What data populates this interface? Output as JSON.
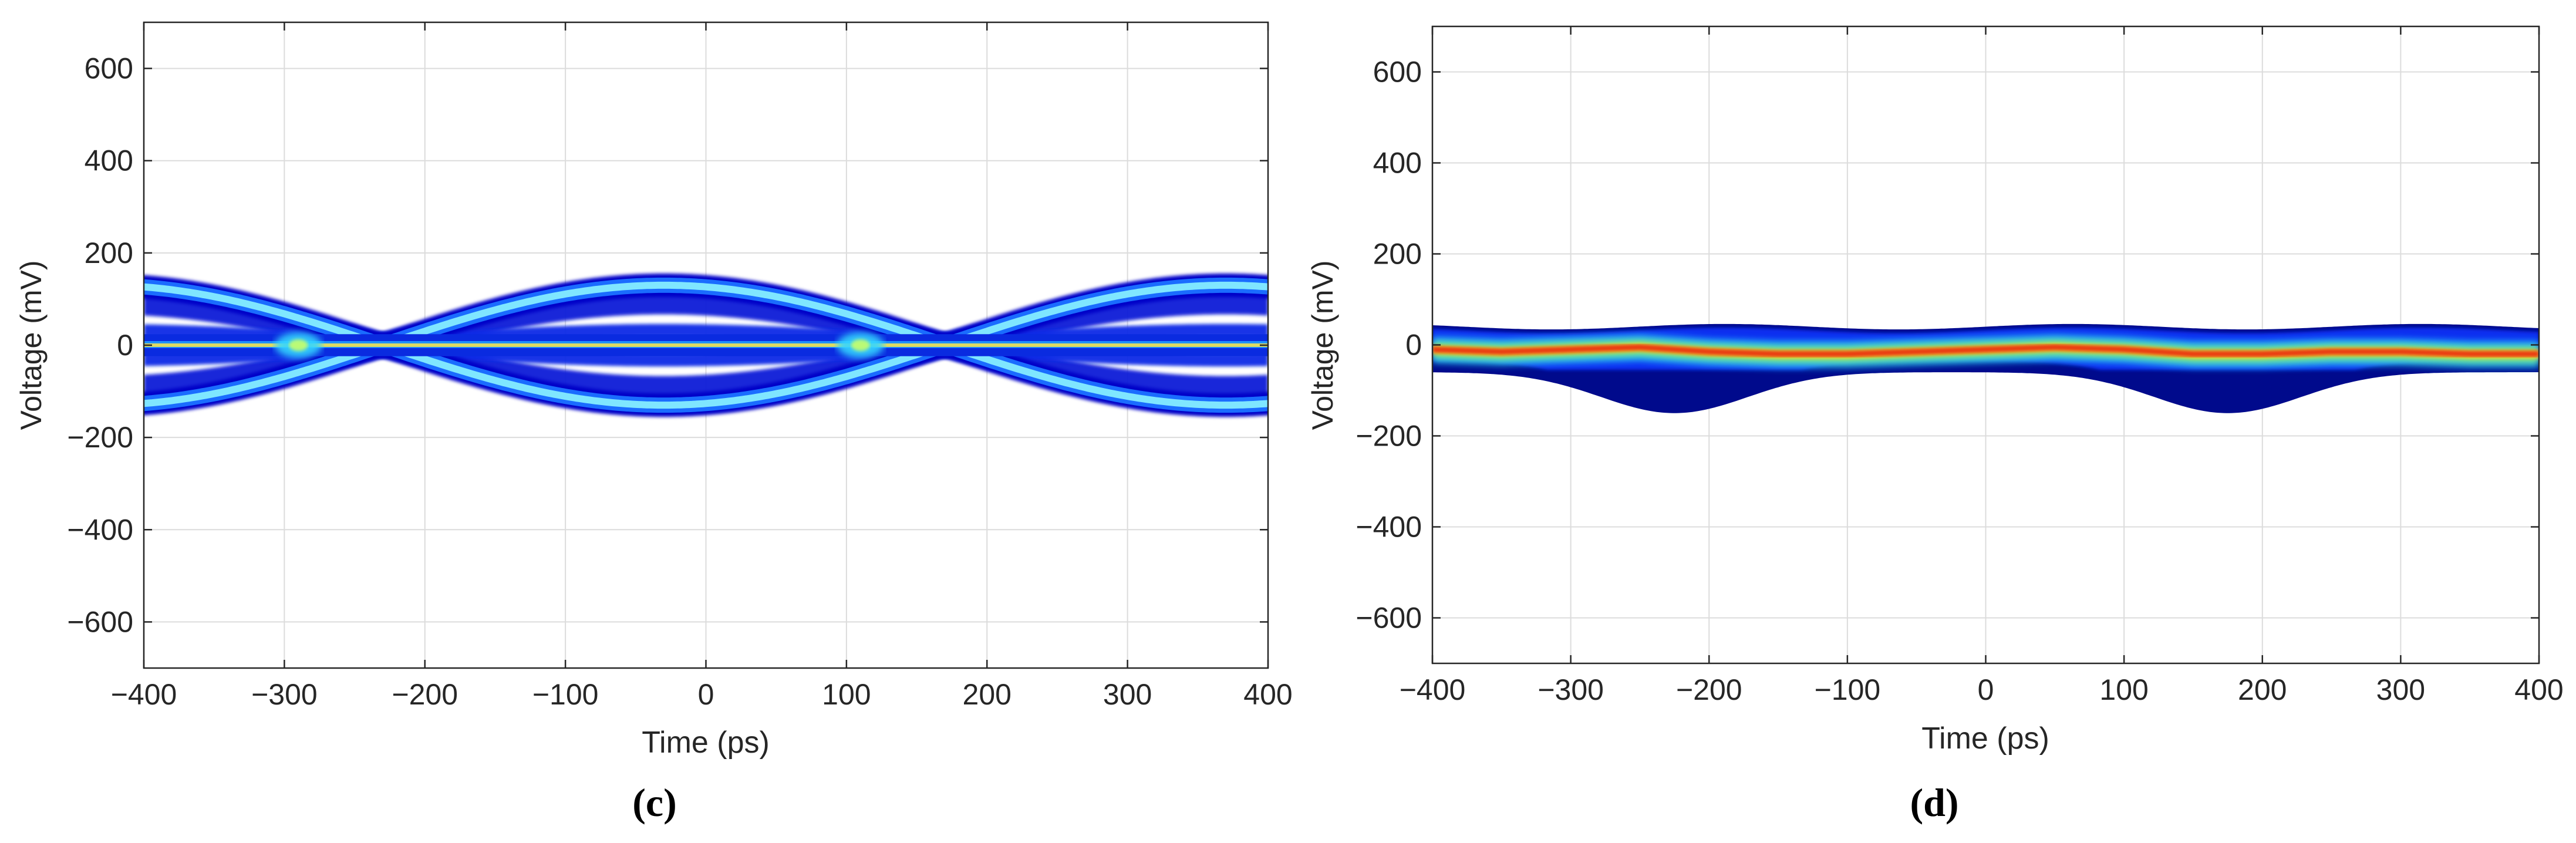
{
  "chart_data": [
    {
      "panel": "(c)",
      "type": "heatmap",
      "chart_kind": "eye-diagram density",
      "xlabel": "Time (ps)",
      "ylabel": "Voltage (mV)",
      "xlim": [
        -400,
        400
      ],
      "ylim": [
        -700,
        700
      ],
      "xticks": [
        -400,
        -300,
        -200,
        -100,
        0,
        100,
        200,
        300,
        400
      ],
      "yticks": [
        -600,
        -400,
        -200,
        0,
        200,
        400,
        600
      ],
      "xtick_labels": [
        "−400",
        "−300",
        "−200",
        "−100",
        "0",
        "100",
        "200",
        "300",
        "400"
      ],
      "ytick_labels": [
        "−600",
        "−400",
        "−200",
        "0",
        "200",
        "400",
        "600"
      ],
      "grid": true,
      "colormap": "jet",
      "crossings_ps": [
        -290,
        110
      ],
      "eye_center_ps": -30,
      "outer_level_mV": 130,
      "inner_level_mV": 15,
      "outer_band_max_mV": 135,
      "flat_line_mV": [
        15,
        0,
        -15
      ],
      "hot_trace": {
        "x": [
          -400,
          400
        ],
        "y": [
          0,
          0
        ]
      }
    },
    {
      "panel": "(d)",
      "type": "heatmap",
      "chart_kind": "eye-diagram density",
      "xlabel": "Time (ps)",
      "ylabel": "Voltage (mV)",
      "xlim": [
        -400,
        400
      ],
      "ylim": [
        -700,
        700
      ],
      "xticks": [
        -400,
        -300,
        -200,
        -100,
        0,
        100,
        200,
        300,
        400
      ],
      "yticks": [
        -600,
        -400,
        -200,
        0,
        200,
        400,
        600
      ],
      "xtick_labels": [
        "−400",
        "−300",
        "−200",
        "−100",
        "0",
        "100",
        "200",
        "300",
        "400"
      ],
      "ytick_labels": [
        "−600",
        "−400",
        "−200",
        "0",
        "200",
        "400",
        "600"
      ],
      "grid": true,
      "colormap": "jet",
      "band_top_mV": 40,
      "band_bottom_base_mV": -60,
      "dips": [
        {
          "x": -225,
          "y_min": -150
        },
        {
          "x": 175,
          "y_min": -150
        }
      ],
      "hot_trace": {
        "x": [
          -400,
          -350,
          -300,
          -250,
          -200,
          -150,
          -100,
          -50,
          0,
          50,
          100,
          150,
          200,
          250,
          300,
          350,
          400
        ],
        "y": [
          -10,
          -15,
          -10,
          -5,
          -15,
          -20,
          -20,
          -15,
          -10,
          -5,
          -10,
          -20,
          -20,
          -15,
          -15,
          -20,
          -20
        ]
      }
    }
  ],
  "panel_labels": {
    "c": "(c)",
    "d": "(d)"
  }
}
